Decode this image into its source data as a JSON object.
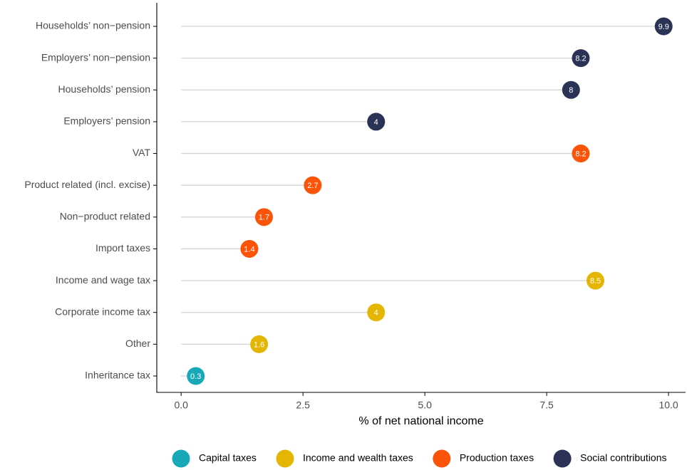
{
  "chart_data": {
    "type": "lollipop",
    "xlabel": "% of net national income",
    "categories": [
      "Households’ non−pension",
      "Employers’ non−pension",
      "Households’ pension",
      "Employers’ pension",
      "VAT",
      "Product related (incl. excise)",
      "Non−product related",
      "Import taxes",
      "Income and wage tax",
      "Corporate income tax",
      "Other",
      "Inheritance tax"
    ],
    "series": [
      {
        "name": "Capital taxes",
        "color": "#17a9b7",
        "values": [
          null,
          null,
          null,
          null,
          null,
          null,
          null,
          null,
          null,
          null,
          null,
          0.3
        ]
      },
      {
        "name": "Income and wealth taxes",
        "color": "#e5b503",
        "values": [
          null,
          null,
          null,
          null,
          null,
          null,
          null,
          null,
          8.5,
          4,
          1.6,
          null
        ]
      },
      {
        "name": "Production taxes",
        "color": "#fb5409",
        "values": [
          null,
          null,
          null,
          null,
          8.2,
          2.7,
          1.7,
          1.4,
          null,
          null,
          null,
          null
        ]
      },
      {
        "name": "Social contributions",
        "color": "#2a3355",
        "values": [
          9.9,
          8.2,
          8,
          4,
          null,
          null,
          null,
          null,
          null,
          null,
          null,
          null
        ]
      }
    ],
    "xlim": [
      -0.5,
      10.35
    ],
    "xticks": [
      {
        "value": 0,
        "label": "0.0"
      },
      {
        "value": 2.5,
        "label": "2.5"
      },
      {
        "value": 5,
        "label": "5.0"
      },
      {
        "value": 7.5,
        "label": "7.5"
      },
      {
        "value": 10,
        "label": "10.0"
      }
    ],
    "legend": "bottom"
  }
}
